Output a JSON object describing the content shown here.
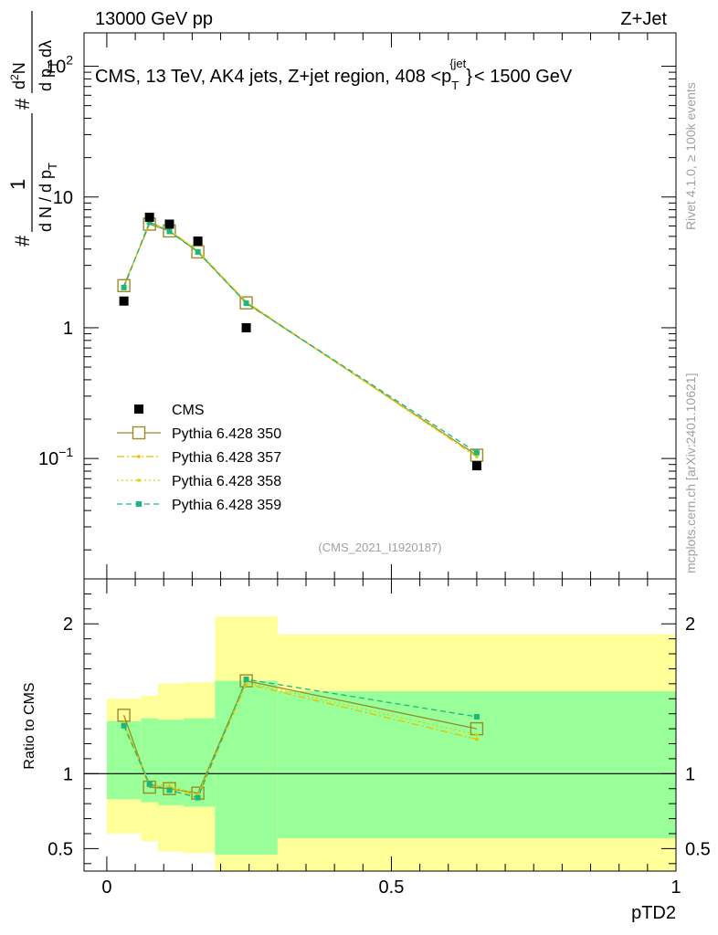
{
  "header": {
    "left": "13000 GeV pp",
    "right": "Z+Jet"
  },
  "side_labels": {
    "rivet": "Rivet 4.1.0, ≥ 100k events",
    "mcplots": "mcplots.cern.ch [arXiv:2401.10621]"
  },
  "chart_data": [
    {
      "panel": "main",
      "type": "scatter",
      "title": "CMS, 13 TeV, AK4 jets, Z+jet region, 408 <p_T^{jet}< 1500 GeV",
      "title_parts": {
        "main": "CMS, 13 TeV, AK4 jets, Z+jet region, 408 <p",
        "sub": "T",
        "sup": "{jet",
        "brace": "}",
        "tail": "< 1500 GeV"
      },
      "ylabel": "1/dN/dp_T # d²N/dp_T dλ",
      "ylabel_parts": {
        "hash": "#",
        "one": "1",
        "den": "d N / d p",
        "sub": "T",
        "num": "d",
        "sup2": "2",
        "n": "N",
        "den2": "d p",
        "sub2": "T",
        "lam": "dλ"
      },
      "yscale": "log",
      "ylim": [
        0.012,
        180
      ],
      "xlim": [
        -0.04,
        1.0
      ],
      "yticks": [
        {
          "v": 0.1,
          "base": "10",
          "exp": "−1"
        },
        {
          "v": 1,
          "base": "1",
          "exp": ""
        },
        {
          "v": 10,
          "base": "10",
          "exp": ""
        },
        {
          "v": 100,
          "base": "10",
          "exp": "2"
        }
      ],
      "watermark": "(CMS_2021_I1920187)",
      "legend_position": "lower-left",
      "series": [
        {
          "name": "CMS",
          "style": "data",
          "color": "#000000",
          "x": [
            0.03,
            0.075,
            0.11,
            0.16,
            0.245,
            0.65
          ],
          "y": [
            1.6,
            7.0,
            6.2,
            4.6,
            1.0,
            0.088
          ]
        },
        {
          "name": "Pythia 6.428 350",
          "style": "open-square-solid",
          "color": "#9a8a2a",
          "x": [
            0.03,
            0.075,
            0.11,
            0.16,
            0.245,
            0.65
          ],
          "y": [
            2.1,
            6.2,
            5.5,
            3.8,
            1.55,
            0.106
          ]
        },
        {
          "name": "Pythia 6.428 357",
          "style": "dashdot",
          "color": "#e8c000",
          "x": [
            0.03,
            0.075,
            0.11,
            0.16,
            0.245,
            0.65
          ],
          "y": [
            2.05,
            6.4,
            5.6,
            3.85,
            1.58,
            0.103
          ]
        },
        {
          "name": "Pythia 6.428 358",
          "style": "dotted",
          "color": "#d4d400",
          "x": [
            0.03,
            0.075,
            0.11,
            0.16,
            0.245,
            0.65
          ],
          "y": [
            2.05,
            6.3,
            5.55,
            3.9,
            1.57,
            0.104
          ]
        },
        {
          "name": "Pythia 6.428 359",
          "style": "dashed-square",
          "color": "#1ab87a",
          "x": [
            0.03,
            0.075,
            0.11,
            0.16,
            0.245,
            0.65
          ],
          "y": [
            2.03,
            6.45,
            5.45,
            3.8,
            1.54,
            0.111
          ]
        }
      ]
    },
    {
      "panel": "ratio",
      "type": "line",
      "ylabel": "Ratio to CMS",
      "xlabel": "pTD2",
      "ylim": [
        0.35,
        2.3
      ],
      "xlim": [
        -0.04,
        1.0
      ],
      "yticks": [
        0.5,
        1,
        2
      ],
      "xticks": [
        0,
        0.5,
        1
      ],
      "xtick_labels": [
        "0",
        "0.5",
        "1"
      ],
      "reference_line": 1,
      "bands": {
        "edges": [
          0.0,
          0.06,
          0.09,
          0.135,
          0.19,
          0.3,
          1.0
        ],
        "yellow_lo": [
          0.6,
          0.55,
          0.48,
          0.47,
          0.3,
          0.3
        ],
        "yellow_hi": [
          1.5,
          1.52,
          1.6,
          1.61,
          2.05,
          1.93
        ],
        "green_lo": [
          0.83,
          0.81,
          0.79,
          0.78,
          0.46,
          0.57
        ],
        "green_hi": [
          1.35,
          1.37,
          1.36,
          1.37,
          1.62,
          1.55
        ],
        "yellow_color": "#ffff99",
        "green_color": "#99ff99"
      },
      "series": [
        {
          "name": "Pythia 6.428 350",
          "color": "#9a8a2a",
          "style": "open-square-solid",
          "x": [
            0.03,
            0.075,
            0.11,
            0.16,
            0.245,
            0.65
          ],
          "y": [
            1.39,
            0.91,
            0.9,
            0.87,
            1.62,
            1.3
          ]
        },
        {
          "name": "Pythia 6.428 357",
          "color": "#e8c000",
          "style": "dashdot",
          "x": [
            0.03,
            0.075,
            0.11,
            0.16,
            0.245,
            0.65
          ],
          "y": [
            1.33,
            0.92,
            0.91,
            0.85,
            1.6,
            1.23
          ]
        },
        {
          "name": "Pythia 6.428 358",
          "color": "#d4d400",
          "style": "dotted",
          "x": [
            0.03,
            0.075,
            0.11,
            0.16,
            0.245,
            0.65
          ],
          "y": [
            1.34,
            0.93,
            0.92,
            0.86,
            1.61,
            1.26
          ]
        },
        {
          "name": "Pythia 6.428 359",
          "color": "#1ab87a",
          "style": "dashed-square",
          "x": [
            0.03,
            0.075,
            0.11,
            0.16,
            0.245,
            0.65
          ],
          "y": [
            1.32,
            0.93,
            0.89,
            0.84,
            1.63,
            1.38
          ]
        }
      ]
    }
  ]
}
